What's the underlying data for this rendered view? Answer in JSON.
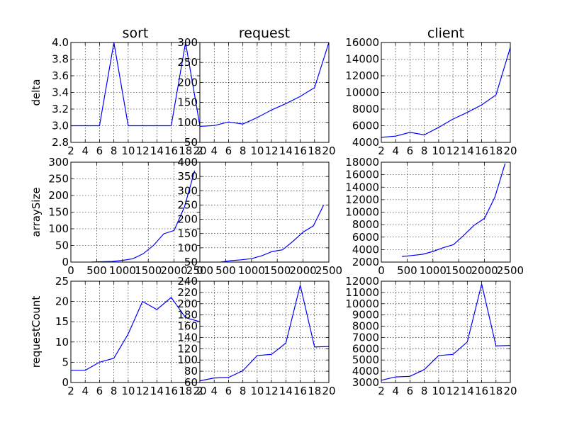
{
  "chart_data": [
    {
      "id": "sort-delta",
      "type": "line",
      "title": "sort",
      "ylabel": "delta",
      "ylim": [
        2.8,
        4.0
      ],
      "xlim": [
        2,
        20
      ],
      "x": [
        2,
        4,
        6,
        8,
        10,
        12,
        14,
        16,
        18,
        20
      ],
      "values": [
        3,
        3,
        3,
        4,
        3,
        3,
        3,
        3,
        4,
        3
      ],
      "xticks": [
        2,
        4,
        6,
        8,
        10,
        12,
        14,
        16,
        18,
        20
      ],
      "xtick_labels": [
        "2",
        "4",
        "6",
        "8",
        "10",
        "12",
        "14",
        "16",
        "18",
        "20"
      ],
      "yticks": [
        2.8,
        3.0,
        3.2,
        3.4,
        3.6,
        3.8,
        4.0
      ],
      "ytick_labels": [
        "2.8",
        "3.0",
        "3.2",
        "3.4",
        "3.6",
        "3.8",
        "4.0"
      ]
    },
    {
      "id": "request-delta",
      "type": "line",
      "title": "request",
      "ylabel": "",
      "ylim": [
        50,
        300
      ],
      "xlim": [
        2,
        20
      ],
      "x": [
        2,
        4,
        6,
        8,
        10,
        12,
        14,
        16,
        18,
        20
      ],
      "values": [
        90,
        92,
        101,
        96,
        112,
        131,
        147,
        165,
        187,
        300
      ],
      "xticks": [
        2,
        4,
        6,
        8,
        10,
        12,
        14,
        16,
        18,
        20
      ],
      "xtick_labels": [
        "2",
        "4",
        "6",
        "8",
        "10",
        "12",
        "14",
        "16",
        "18",
        "20"
      ],
      "yticks": [
        50,
        100,
        150,
        200,
        250,
        300
      ],
      "ytick_labels": [
        "50",
        "100",
        "150",
        "200",
        "250",
        "300"
      ]
    },
    {
      "id": "client-delta",
      "type": "line",
      "title": "client",
      "ylabel": "",
      "ylim": [
        4000,
        16000
      ],
      "xlim": [
        2,
        20
      ],
      "x": [
        2,
        4,
        6,
        8,
        10,
        12,
        14,
        16,
        18,
        20
      ],
      "values": [
        4600,
        4750,
        5200,
        4900,
        5800,
        6800,
        7600,
        8500,
        9700,
        15400
      ],
      "xticks": [
        2,
        4,
        6,
        8,
        10,
        12,
        14,
        16,
        18,
        20
      ],
      "xtick_labels": [
        "2",
        "4",
        "6",
        "8",
        "10",
        "12",
        "14",
        "16",
        "18",
        "20"
      ],
      "yticks": [
        4000,
        6000,
        8000,
        10000,
        12000,
        14000,
        16000
      ],
      "ytick_labels": [
        "4000",
        "6000",
        "8000",
        "10000",
        "12000",
        "14000",
        "16000"
      ]
    },
    {
      "id": "sort-arraysize",
      "type": "line",
      "title": "",
      "ylabel": "arraySize",
      "ylim": [
        0,
        300
      ],
      "xlim": [
        0,
        2500
      ],
      "x": [
        400,
        600,
        800,
        1000,
        1200,
        1400,
        1600,
        1800,
        2000,
        2200,
        2400
      ],
      "values": [
        0,
        1,
        2,
        5,
        10,
        25,
        50,
        85,
        95,
        165,
        275
      ],
      "xticks": [
        0,
        500,
        1000,
        1500,
        2000,
        2500
      ],
      "xtick_labels": [
        "0",
        "500",
        "1000",
        "1500",
        "2000",
        "2500"
      ],
      "yticks": [
        0,
        50,
        100,
        150,
        200,
        250,
        300
      ],
      "ytick_labels": [
        "0",
        "50",
        "100",
        "150",
        "200",
        "250",
        "300"
      ]
    },
    {
      "id": "request-arraysize",
      "type": "line",
      "title": "",
      "ylabel": "",
      "ylim": [
        50,
        400
      ],
      "xlim": [
        0,
        2500
      ],
      "x": [
        400,
        600,
        800,
        1000,
        1200,
        1400,
        1600,
        1800,
        2000,
        2200,
        2400
      ],
      "values": [
        50,
        55,
        58,
        62,
        72,
        87,
        93,
        122,
        155,
        177,
        250
      ],
      "xticks": [
        0,
        500,
        1000,
        1500,
        2000,
        2500
      ],
      "xtick_labels": [
        "0",
        "500",
        "1000",
        "1500",
        "2000",
        "2500"
      ],
      "yticks": [
        50,
        100,
        150,
        200,
        250,
        300,
        350,
        400
      ],
      "ytick_labels": [
        "50",
        "100",
        "150",
        "200",
        "250",
        "300",
        "350",
        "400"
      ]
    },
    {
      "id": "client-arraysize",
      "type": "line",
      "title": "",
      "ylabel": "",
      "ylim": [
        2000,
        18000
      ],
      "xlim": [
        0,
        2500
      ],
      "x": [
        400,
        600,
        800,
        1000,
        1200,
        1400,
        1600,
        1800,
        2000,
        2200,
        2400
      ],
      "values": [
        2900,
        3050,
        3250,
        3700,
        4300,
        4800,
        6300,
        7900,
        9000,
        12400,
        17800
      ],
      "xticks": [
        0,
        500,
        1000,
        1500,
        2000,
        2500
      ],
      "xtick_labels": [
        "0",
        "500",
        "1000",
        "1500",
        "2000",
        "2500"
      ],
      "yticks": [
        2000,
        4000,
        6000,
        8000,
        10000,
        12000,
        14000,
        16000,
        18000
      ],
      "ytick_labels": [
        "2000",
        "4000",
        "6000",
        "8000",
        "10000",
        "12000",
        "14000",
        "16000",
        "18000"
      ]
    },
    {
      "id": "sort-requestcount",
      "type": "line",
      "title": "",
      "ylabel": "requestCount",
      "ylim": [
        0,
        25
      ],
      "xlim": [
        2,
        20
      ],
      "x": [
        2,
        4,
        6,
        8,
        10,
        12,
        14,
        16,
        18,
        20
      ],
      "values": [
        3,
        3,
        5,
        6,
        12,
        20,
        18,
        21,
        16,
        15
      ],
      "xticks": [
        2,
        4,
        6,
        8,
        10,
        12,
        14,
        16,
        18,
        20
      ],
      "xtick_labels": [
        "2",
        "4",
        "6",
        "8",
        "10",
        "12",
        "14",
        "16",
        "18",
        "20"
      ],
      "yticks": [
        0,
        5,
        10,
        15,
        20,
        25
      ],
      "ytick_labels": [
        "0",
        "5",
        "10",
        "15",
        "20",
        "25"
      ]
    },
    {
      "id": "request-requestcount",
      "type": "line",
      "title": "",
      "ylabel": "",
      "ylim": [
        60,
        240
      ],
      "xlim": [
        2,
        20
      ],
      "x": [
        2,
        4,
        6,
        8,
        10,
        12,
        14,
        16,
        18,
        20
      ],
      "values": [
        63,
        68,
        69,
        81,
        108,
        110,
        130,
        233,
        123,
        124
      ],
      "xticks": [
        2,
        4,
        6,
        8,
        10,
        12,
        14,
        16,
        18,
        20
      ],
      "xtick_labels": [
        "2",
        "4",
        "6",
        "8",
        "10",
        "12",
        "14",
        "16",
        "18",
        "20"
      ],
      "yticks": [
        60,
        80,
        100,
        120,
        140,
        160,
        180,
        200,
        220,
        240
      ],
      "ytick_labels": [
        "60",
        "80",
        "100",
        "120",
        "140",
        "160",
        "180",
        "200",
        "220",
        "240"
      ]
    },
    {
      "id": "client-requestcount",
      "type": "line",
      "title": "",
      "ylabel": "",
      "ylim": [
        3000,
        12000
      ],
      "xlim": [
        2,
        20
      ],
      "x": [
        2,
        4,
        6,
        8,
        10,
        12,
        14,
        16,
        18,
        20
      ],
      "values": [
        3200,
        3500,
        3550,
        4150,
        5400,
        5500,
        6600,
        11750,
        6250,
        6300
      ],
      "xticks": [
        2,
        4,
        6,
        8,
        10,
        12,
        14,
        16,
        18,
        20
      ],
      "xtick_labels": [
        "2",
        "4",
        "6",
        "8",
        "10",
        "12",
        "14",
        "16",
        "18",
        "20"
      ],
      "yticks": [
        3000,
        4000,
        5000,
        6000,
        7000,
        8000,
        9000,
        10000,
        11000,
        12000
      ],
      "ytick_labels": [
        "3000",
        "4000",
        "5000",
        "6000",
        "7000",
        "8000",
        "9000",
        "10000",
        "11000",
        "12000"
      ]
    }
  ],
  "colors": {
    "series": "#0000ff",
    "frame": "#000000",
    "background": "#ffffff"
  }
}
